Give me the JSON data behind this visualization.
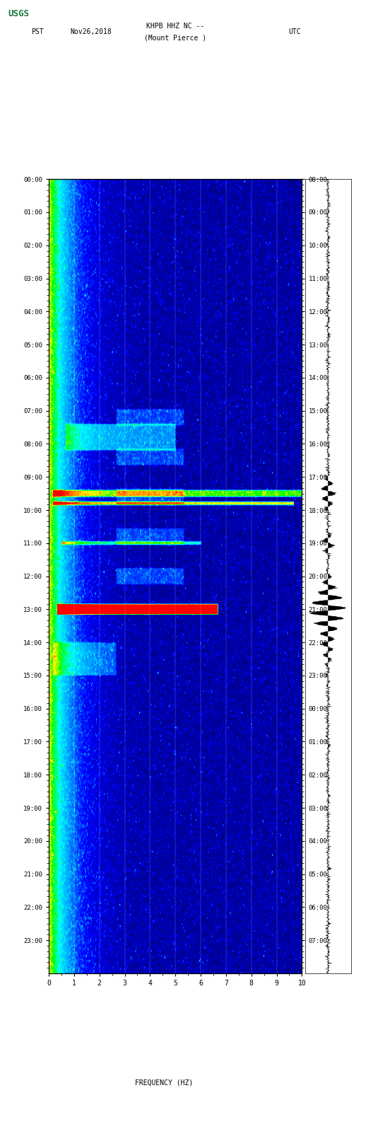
{
  "title_line1": "KHPB HHZ NC --",
  "title_line2": "(Mount Pierce )",
  "timezone_left": "PST",
  "date": "Nov26,2018",
  "timezone_right": "UTC",
  "xlabel": "FREQUENCY (HZ)",
  "freq_min": 0,
  "freq_max": 10,
  "freq_ticks": [
    0,
    1,
    2,
    3,
    4,
    5,
    6,
    7,
    8,
    9,
    10
  ],
  "time_start_pst": "00:00",
  "time_end_pst": "23:00",
  "time_start_utc": "08:00",
  "time_end_utc": "07:00",
  "pst_ticks": [
    "00:00",
    "01:00",
    "02:00",
    "03:00",
    "04:00",
    "05:00",
    "06:00",
    "07:00",
    "08:00",
    "09:00",
    "10:00",
    "11:00",
    "12:00",
    "13:00",
    "14:00",
    "15:00",
    "16:00",
    "17:00",
    "18:00",
    "19:00",
    "20:00",
    "21:00",
    "22:00",
    "23:00"
  ],
  "utc_ticks": [
    "08:00",
    "09:00",
    "10:00",
    "11:00",
    "12:00",
    "13:00",
    "14:00",
    "15:00",
    "16:00",
    "17:00",
    "18:00",
    "19:00",
    "20:00",
    "21:00",
    "22:00",
    "23:00",
    "00:00",
    "01:00",
    "02:00",
    "03:00",
    "04:00",
    "05:00",
    "06:00",
    "07:00"
  ],
  "spectrogram_bg": "#000080",
  "noise_event1_row": 9.5,
  "noise_event2_row": 13.0,
  "background_color": "#ffffff",
  "logo_color": "#1a7a3e"
}
